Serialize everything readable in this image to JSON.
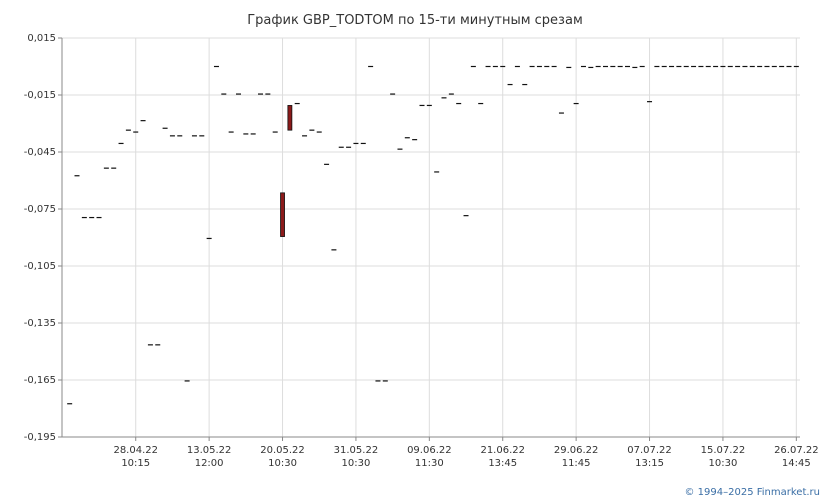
{
  "chart_data": {
    "type": "candlestick",
    "title": "График GBP_TODTOM по 15-ти минутным срезам",
    "xlabel": "",
    "ylabel": "",
    "ylim": [
      -0.195,
      0.015
    ],
    "yticks": [
      "0,015",
      "-0,015",
      "-0,045",
      "-0,075",
      "-0,105",
      "-0,135",
      "-0,165",
      "-0,195"
    ],
    "ytick_values": [
      0.015,
      -0.015,
      -0.045,
      -0.075,
      -0.105,
      -0.135,
      -0.165,
      -0.195
    ],
    "xticks": [
      {
        "date": "28.04.22",
        "time": "10:15",
        "index": 9
      },
      {
        "date": "13.05.22",
        "time": "12:00",
        "index": 19
      },
      {
        "date": "20.05.22",
        "time": "10:30",
        "index": 29
      },
      {
        "date": "31.05.22",
        "time": "10:30",
        "index": 39
      },
      {
        "date": "09.06.22",
        "time": "11:30",
        "index": 49
      },
      {
        "date": "21.06.22",
        "time": "13:45",
        "index": 59
      },
      {
        "date": "29.06.22",
        "time": "11:45",
        "index": 69
      },
      {
        "date": "07.07.22",
        "time": "13:15",
        "index": 79
      },
      {
        "date": "15.07.22",
        "time": "10:30",
        "index": 89
      },
      {
        "date": "26.07.22",
        "time": "14:45",
        "index": 99
      }
    ],
    "grid": true,
    "credit": "© 1994–2025 Finmarket.ru",
    "up_color": "#ffffff",
    "down_color": "#8b1a1a",
    "candles": [
      {
        "o": -0.1775,
        "c": -0.1775
      },
      {
        "o": -0.0575,
        "c": -0.0575
      },
      {
        "o": -0.0795,
        "c": -0.0795
      },
      {
        "o": -0.0795,
        "c": -0.0795
      },
      {
        "o": -0.0795,
        "c": -0.0795
      },
      {
        "o": -0.0535,
        "c": -0.0535
      },
      {
        "o": -0.0535,
        "c": -0.0535
      },
      {
        "o": -0.0405,
        "c": -0.0405
      },
      {
        "o": -0.0335,
        "c": -0.0335
      },
      {
        "o": -0.0345,
        "c": -0.0345
      },
      {
        "o": -0.0285,
        "c": -0.0285
      },
      {
        "o": -0.1465,
        "c": -0.1465
      },
      {
        "o": -0.1465,
        "c": -0.1465
      },
      {
        "o": -0.0325,
        "c": -0.0325
      },
      {
        "o": -0.0365,
        "c": -0.0365
      },
      {
        "o": -0.0365,
        "c": -0.0365
      },
      {
        "o": -0.1655,
        "c": -0.1655
      },
      {
        "o": -0.0365,
        "c": -0.0365
      },
      {
        "o": -0.0365,
        "c": -0.0365
      },
      {
        "o": -0.0905,
        "c": -0.0905
      },
      {
        "o": 0.0,
        "c": 0.0
      },
      {
        "o": -0.0145,
        "c": -0.0145
      },
      {
        "o": -0.0345,
        "c": -0.0345
      },
      {
        "o": -0.0145,
        "c": -0.0145
      },
      {
        "o": -0.0355,
        "c": -0.0355
      },
      {
        "o": -0.0355,
        "c": -0.0355
      },
      {
        "o": -0.0145,
        "c": -0.0145
      },
      {
        "o": -0.0145,
        "c": -0.0145
      },
      {
        "o": -0.0345,
        "c": -0.0345
      },
      {
        "o": -0.0665,
        "c": -0.0895
      },
      {
        "o": -0.0205,
        "c": -0.0335
      },
      {
        "o": -0.0195,
        "c": -0.0195
      },
      {
        "o": -0.0365,
        "c": -0.0365
      },
      {
        "o": -0.0335,
        "c": -0.0335
      },
      {
        "o": -0.0345,
        "c": -0.0345
      },
      {
        "o": -0.0515,
        "c": -0.0515
      },
      {
        "o": -0.0965,
        "c": -0.0965
      },
      {
        "o": -0.0425,
        "c": -0.0425
      },
      {
        "o": -0.0425,
        "c": -0.0425
      },
      {
        "o": -0.0405,
        "c": -0.0405
      },
      {
        "o": -0.0405,
        "c": -0.0405
      },
      {
        "o": 0.0,
        "c": 0.0
      },
      {
        "o": -0.1655,
        "c": -0.1655
      },
      {
        "o": -0.1655,
        "c": -0.1655
      },
      {
        "o": -0.0145,
        "c": -0.0145
      },
      {
        "o": -0.0435,
        "c": -0.0435
      },
      {
        "o": -0.0375,
        "c": -0.0375
      },
      {
        "o": -0.0385,
        "c": -0.0385
      },
      {
        "o": -0.0205,
        "c": -0.0205
      },
      {
        "o": -0.0205,
        "c": -0.0205
      },
      {
        "o": -0.0555,
        "c": -0.0555
      },
      {
        "o": -0.0165,
        "c": -0.0165
      },
      {
        "o": -0.0145,
        "c": -0.0145
      },
      {
        "o": -0.0195,
        "c": -0.0195
      },
      {
        "o": -0.0785,
        "c": -0.0785
      },
      {
        "o": 0.0,
        "c": 0.0
      },
      {
        "o": -0.0195,
        "c": -0.0195
      },
      {
        "o": 0.0,
        "c": 0.0
      },
      {
        "o": 0.0,
        "c": 0.0
      },
      {
        "o": 0.0,
        "c": 0.0
      },
      {
        "o": -0.0095,
        "c": -0.0095
      },
      {
        "o": 0.0,
        "c": 0.0
      },
      {
        "o": -0.0095,
        "c": -0.0095
      },
      {
        "o": 0.0,
        "c": 0.0
      },
      {
        "o": 0.0,
        "c": 0.0
      },
      {
        "o": 0.0,
        "c": 0.0
      },
      {
        "o": 0.0,
        "c": 0.0
      },
      {
        "o": -0.0245,
        "c": -0.0245
      },
      {
        "o": -0.0005,
        "c": -0.0005
      },
      {
        "o": -0.0195,
        "c": -0.0195
      },
      {
        "o": 0.0,
        "c": 0.0
      },
      {
        "o": -0.0005,
        "c": -0.0005
      },
      {
        "o": 0.0,
        "c": 0.0
      },
      {
        "o": 0.0,
        "c": 0.0
      },
      {
        "o": 0.0,
        "c": 0.0
      },
      {
        "o": 0.0,
        "c": 0.0
      },
      {
        "o": 0.0,
        "c": 0.0
      },
      {
        "o": -0.0005,
        "c": -0.0005
      },
      {
        "o": 0.0,
        "c": 0.0
      },
      {
        "o": -0.0185,
        "c": -0.0185
      },
      {
        "o": 0.0,
        "c": 0.0
      },
      {
        "o": 0.0,
        "c": 0.0
      },
      {
        "o": 0.0,
        "c": 0.0
      },
      {
        "o": 0.0,
        "c": 0.0
      },
      {
        "o": 0.0,
        "c": 0.0
      },
      {
        "o": 0.0,
        "c": 0.0
      },
      {
        "o": 0.0,
        "c": 0.0
      },
      {
        "o": 0.0,
        "c": 0.0
      },
      {
        "o": 0.0,
        "c": 0.0
      },
      {
        "o": 0.0,
        "c": 0.0
      },
      {
        "o": 0.0,
        "c": 0.0
      },
      {
        "o": 0.0,
        "c": 0.0
      },
      {
        "o": 0.0,
        "c": 0.0
      },
      {
        "o": 0.0,
        "c": 0.0
      },
      {
        "o": 0.0,
        "c": 0.0
      },
      {
        "o": 0.0,
        "c": 0.0
      },
      {
        "o": 0.0,
        "c": 0.0
      },
      {
        "o": 0.0,
        "c": 0.0
      },
      {
        "o": 0.0,
        "c": 0.0
      },
      {
        "o": 0.0,
        "c": 0.0
      }
    ]
  }
}
